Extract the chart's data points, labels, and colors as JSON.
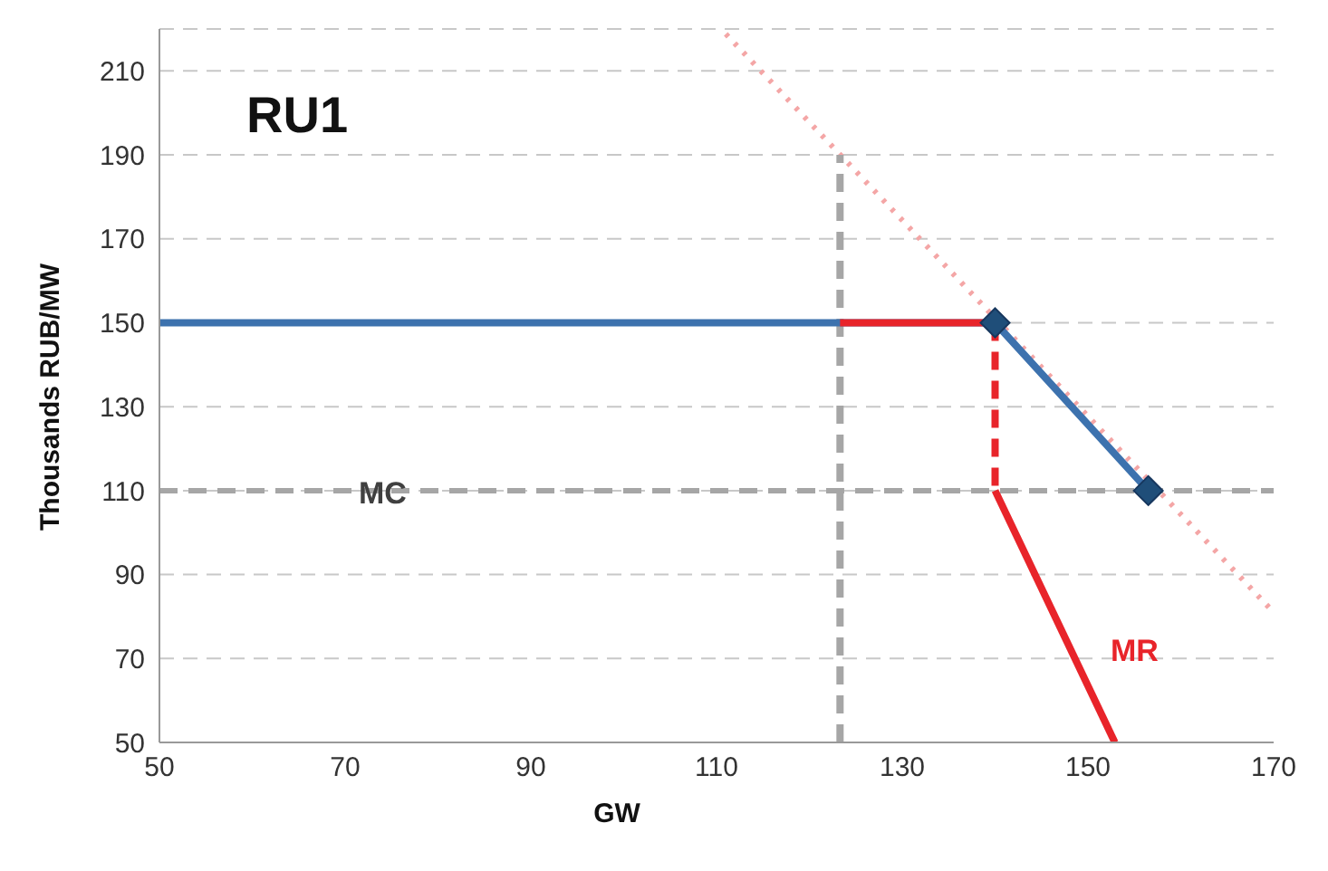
{
  "chart_data": {
    "type": "line",
    "title": "RU1",
    "xlabel": "GW",
    "ylabel": "Thousands RUB/MW",
    "xlim": [
      50,
      170
    ],
    "xticks": [
      50,
      70,
      90,
      110,
      130,
      150,
      170
    ],
    "ylim": [
      50,
      220
    ],
    "yticks": [
      50,
      70,
      90,
      110,
      130,
      150,
      170,
      190,
      210
    ],
    "grid": "y",
    "legend": false,
    "series": [
      {
        "color": "#f4a6a6",
        "line_style": "dotted",
        "x": [
          111,
          170
        ],
        "values": [
          218.8,
          81
        ]
      },
      {
        "color": "#a6a6a6",
        "line_style": "dashed",
        "x": [
          123.3,
          123.3
        ],
        "values": [
          50,
          190
        ]
      },
      {
        "color": "#3d72ae",
        "line_style": "solid",
        "x": [
          50,
          140,
          156.5
        ],
        "values": [
          150,
          150,
          110
        ]
      },
      {
        "color": "#e8242a",
        "line_style": "solid",
        "x": [
          123.3,
          140
        ],
        "values": [
          150,
          150
        ]
      },
      {
        "color": "#e8242a",
        "line_style": "solid",
        "x": [
          140,
          152.9
        ],
        "values": [
          110,
          50
        ]
      },
      {
        "color": "#e8242a",
        "line_style": "dashed",
        "x": [
          140,
          140
        ],
        "values": [
          150,
          110
        ]
      },
      {
        "type": "scatter",
        "color": "#1f4e79",
        "marker": "diamond",
        "x": [
          140,
          156.5
        ],
        "values": [
          150,
          110
        ]
      }
    ],
    "ref_lines": [
      {
        "axis": "y",
        "value": 110,
        "color": "#a6a6a6",
        "line_style": "dashed"
      }
    ],
    "annotations": [
      "MC",
      "MR"
    ]
  }
}
